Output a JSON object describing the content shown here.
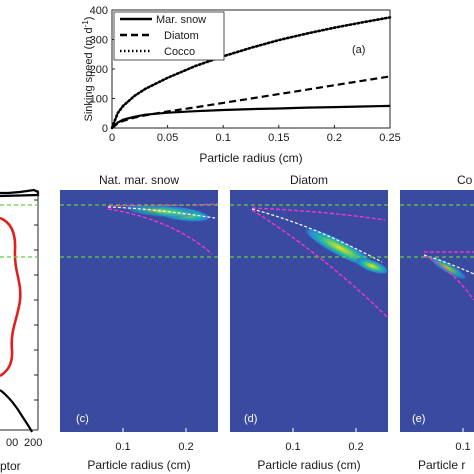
{
  "chart_data": [
    {
      "type": "line",
      "panel_label": "(a)",
      "title": "",
      "xlabel": "Particle radius (cm)",
      "ylabel": "Sinking speed (m d",
      "ylabel_sup": "-1",
      "ylabel_close": ")",
      "xlim": [
        0,
        0.25
      ],
      "ylim": [
        0,
        400
      ],
      "xticks": [
        0,
        0.05,
        0.1,
        0.15,
        0.2,
        0.25
      ],
      "xtick_labels": [
        "0",
        "0.05",
        "0.1",
        "0.15",
        "0.2",
        "0.25"
      ],
      "yticks": [
        0,
        100,
        200,
        300,
        400
      ],
      "ytick_labels": [
        "0",
        "100",
        "200",
        "300",
        "400"
      ],
      "legend_position": "top-left",
      "x": [
        0,
        0.005,
        0.01,
        0.02,
        0.03,
        0.05,
        0.075,
        0.1,
        0.125,
        0.15,
        0.175,
        0.2,
        0.225,
        0.25
      ],
      "series": [
        {
          "name": "Mar. snow",
          "style": "solid",
          "values": [
            0,
            18,
            28,
            38,
            45,
            52,
            57,
            61,
            64,
            66,
            69,
            71,
            73,
            75
          ]
        },
        {
          "name": "Diatom",
          "style": "dashed",
          "values": [
            0,
            15,
            24,
            35,
            43,
            56,
            70,
            85,
            100,
            115,
            130,
            145,
            160,
            175
          ]
        },
        {
          "name": "Cocco",
          "style": "dotted",
          "values": [
            0,
            50,
            75,
            108,
            133,
            170,
            210,
            243,
            272,
            298,
            320,
            340,
            358,
            375
          ]
        }
      ]
    },
    {
      "type": "line",
      "panel_label": "",
      "xlabel": "ptor",
      "xtick_labels": [
        "00",
        "200"
      ],
      "series": [
        {
          "name": "",
          "values": []
        }
      ]
    },
    {
      "type": "heatmap",
      "title": "Nat. mar. snow",
      "panel_label": "(c)",
      "xlabel": "Particle radius (cm)",
      "xlim": [
        0,
        0.25
      ],
      "xtick_labels": [
        "0.1",
        "0.2"
      ]
    },
    {
      "type": "heatmap",
      "title": "Diatom",
      "panel_label": "(d)",
      "xlabel": "Particle radius (cm)",
      "xlim": [
        0,
        0.25
      ],
      "xtick_labels": [
        "0.1",
        "0.2"
      ]
    },
    {
      "type": "heatmap",
      "title": "Co",
      "panel_label": "(e)",
      "xlabel": "Particle r",
      "xtick_labels": [
        "0.1"
      ]
    }
  ],
  "colors": {
    "mar_snow": "#000000",
    "diatom": "#000000",
    "cocco": "#000000",
    "heatmap_bg": "#3a4aa0",
    "reference_lines": "#66cc44",
    "envelope_magenta": "#ff33cc",
    "envelope_white": "#ffffff",
    "profile_red": "#e0201c"
  }
}
